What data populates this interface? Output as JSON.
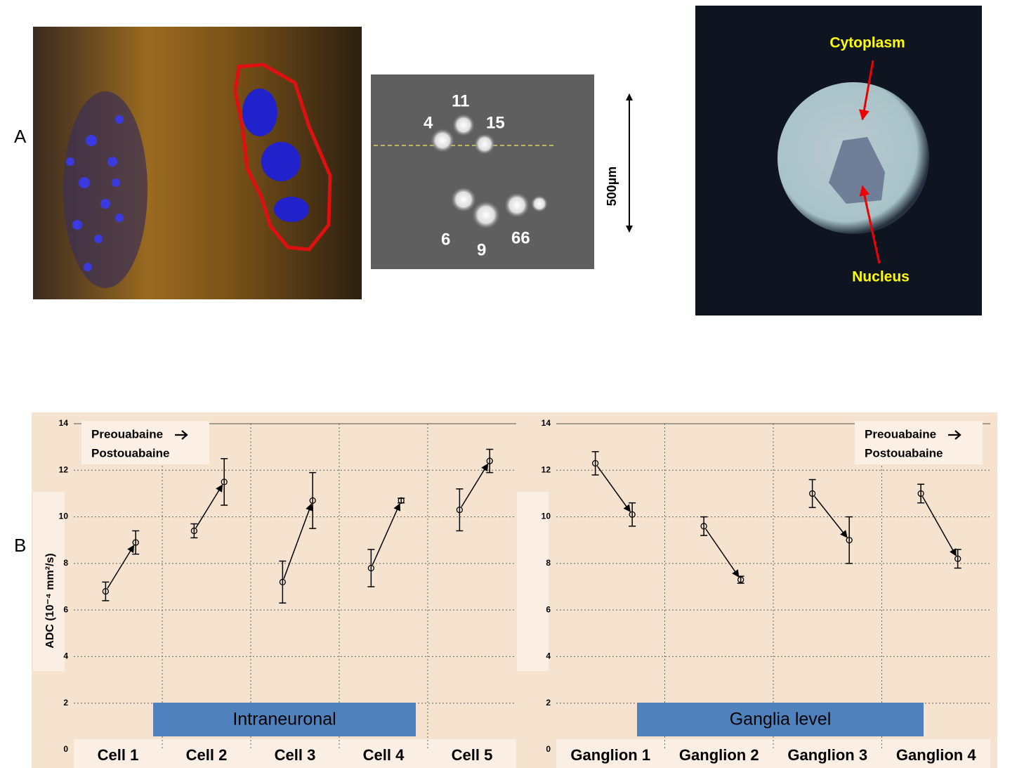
{
  "figure": {
    "panel_labels": [
      "A",
      "B"
    ],
    "cell_numbers": [
      "4",
      "11",
      "15",
      "6",
      "9",
      "66"
    ],
    "scale_bar": "500µm",
    "cytoplasm_label": "Cytoplasm",
    "nucleus_label": "Nucleus"
  },
  "chart_data": [
    {
      "type": "errorbar-pairs",
      "y_label": "ADC (10⁻⁴ mm²/s)",
      "annotation": "Intraneuronal",
      "categories": [
        "Cell 1",
        "Cell 2",
        "Cell 3",
        "Cell 4",
        "Cell 5"
      ],
      "series": [
        {
          "name": "Preouabaine",
          "color": "#000000",
          "values": [
            6.8,
            9.4,
            7.2,
            7.8,
            10.3
          ],
          "errors": [
            0.4,
            0.3,
            0.9,
            0.8,
            0.9
          ]
        },
        {
          "name": "Postouabaine",
          "color": "#000000",
          "values": [
            8.9,
            11.5,
            10.7,
            10.7,
            12.4
          ],
          "errors": [
            0.5,
            1.0,
            1.2,
            0.1,
            0.5
          ]
        }
      ],
      "ylim": [
        0,
        14
      ],
      "yticks": [
        0,
        2,
        4,
        6,
        8,
        10,
        12,
        14
      ],
      "grid": true,
      "legend": "upper left"
    },
    {
      "type": "errorbar-pairs",
      "annotation": "Ganglia level",
      "categories": [
        "Ganglion 1",
        "Ganglion 2",
        "Ganglion 3",
        "Ganglion 4"
      ],
      "series": [
        {
          "name": "Preouabaine",
          "color": "#000000",
          "values": [
            12.3,
            9.6,
            11.0,
            11.0
          ],
          "errors": [
            0.5,
            0.4,
            0.6,
            0.4
          ]
        },
        {
          "name": "Postouabaine",
          "color": "#000000",
          "values": [
            10.1,
            7.3,
            9.0,
            8.2
          ],
          "errors": [
            0.5,
            0.15,
            1.0,
            0.4
          ]
        }
      ],
      "ylim": [
        0,
        14
      ],
      "yticks": [
        0,
        2,
        4,
        6,
        8,
        10,
        12,
        14
      ],
      "grid": true,
      "legend": "upper right"
    }
  ]
}
